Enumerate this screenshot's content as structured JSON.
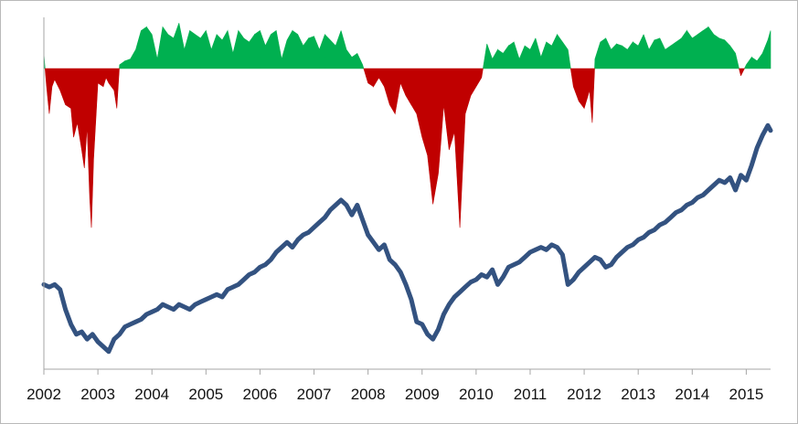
{
  "chart_data": [
    {
      "type": "area",
      "title": "",
      "xlabel": "",
      "ylabel": "",
      "baseline": 0,
      "ylim": [
        -1.0,
        0.27
      ],
      "xlim": [
        2002.0,
        2015.45
      ],
      "colors": {
        "positive": "#00b050",
        "negative": "#c00000"
      },
      "x": [
        2002.0,
        2002.05,
        2002.1,
        2002.15,
        2002.2,
        2002.3,
        2002.4,
        2002.5,
        2002.55,
        2002.62,
        2002.7,
        2002.75,
        2002.8,
        2002.85,
        2002.88,
        2002.92,
        2003.0,
        2003.1,
        2003.15,
        2003.2,
        2003.3,
        2003.35,
        2003.4,
        2003.5,
        2003.6,
        2003.7,
        2003.8,
        2003.9,
        2004.0,
        2004.1,
        2004.2,
        2004.3,
        2004.4,
        2004.5,
        2004.6,
        2004.7,
        2004.8,
        2004.9,
        2005.0,
        2005.1,
        2005.2,
        2005.3,
        2005.4,
        2005.5,
        2005.6,
        2005.7,
        2005.8,
        2005.9,
        2006.0,
        2006.1,
        2006.2,
        2006.3,
        2006.4,
        2006.5,
        2006.6,
        2006.7,
        2006.8,
        2006.9,
        2007.0,
        2007.1,
        2007.2,
        2007.3,
        2007.4,
        2007.5,
        2007.6,
        2007.7,
        2007.8,
        2007.9,
        2008.0,
        2008.1,
        2008.2,
        2008.3,
        2008.4,
        2008.5,
        2008.6,
        2008.7,
        2008.8,
        2008.9,
        2009.0,
        2009.1,
        2009.2,
        2009.3,
        2009.35,
        2009.4,
        2009.5,
        2009.6,
        2009.7,
        2009.8,
        2009.9,
        2010.0,
        2010.1,
        2010.2,
        2010.3,
        2010.4,
        2010.5,
        2010.6,
        2010.7,
        2010.8,
        2010.9,
        2011.0,
        2011.1,
        2011.2,
        2011.3,
        2011.4,
        2011.5,
        2011.6,
        2011.7,
        2011.8,
        2011.9,
        2012.0,
        2012.1,
        2012.15,
        2012.2,
        2012.3,
        2012.4,
        2012.5,
        2012.6,
        2012.7,
        2012.8,
        2012.9,
        2013.0,
        2013.1,
        2013.2,
        2013.3,
        2013.4,
        2013.5,
        2013.6,
        2013.7,
        2013.8,
        2013.9,
        2014.0,
        2014.1,
        2014.2,
        2014.3,
        2014.4,
        2014.5,
        2014.6,
        2014.7,
        2014.8,
        2014.9,
        2015.0,
        2015.1,
        2015.2,
        2015.3,
        2015.4,
        2015.45
      ],
      "values": [
        0.08,
        -0.1,
        -0.25,
        -0.1,
        -0.06,
        -0.12,
        -0.2,
        -0.22,
        -0.38,
        -0.3,
        -0.45,
        -0.55,
        -0.32,
        -0.72,
        -0.88,
        -0.5,
        -0.08,
        -0.1,
        -0.05,
        -0.08,
        -0.12,
        -0.22,
        0.02,
        0.04,
        0.05,
        0.1,
        0.2,
        0.22,
        0.18,
        0.05,
        0.22,
        0.18,
        0.16,
        0.24,
        0.1,
        0.2,
        0.18,
        0.16,
        0.2,
        0.1,
        0.18,
        0.15,
        0.2,
        0.08,
        0.2,
        0.16,
        0.14,
        0.18,
        0.2,
        0.12,
        0.18,
        0.2,
        0.05,
        0.15,
        0.2,
        0.18,
        0.12,
        0.16,
        0.17,
        0.1,
        0.18,
        0.15,
        0.12,
        0.2,
        0.1,
        0.06,
        0.08,
        0.02,
        -0.08,
        -0.1,
        -0.05,
        -0.1,
        -0.2,
        -0.25,
        -0.08,
        -0.15,
        -0.2,
        -0.25,
        -0.38,
        -0.48,
        -0.75,
        -0.58,
        -0.4,
        -0.2,
        -0.45,
        -0.35,
        -0.88,
        -0.25,
        -0.15,
        -0.1,
        -0.05,
        0.13,
        0.05,
        0.1,
        0.08,
        0.12,
        0.14,
        0.05,
        0.12,
        0.1,
        0.16,
        0.06,
        0.14,
        0.12,
        0.18,
        0.14,
        0.1,
        -0.1,
        -0.18,
        -0.22,
        -0.12,
        -0.3,
        0.05,
        0.14,
        0.16,
        0.1,
        0.13,
        0.12,
        0.1,
        0.14,
        0.12,
        0.18,
        0.1,
        0.15,
        0.16,
        0.1,
        0.12,
        0.14,
        0.16,
        0.2,
        0.16,
        0.18,
        0.2,
        0.22,
        0.18,
        0.16,
        0.15,
        0.12,
        0.08,
        -0.04,
        0.02,
        0.06,
        0.04,
        0.08,
        0.15,
        0.2
      ]
    },
    {
      "type": "line",
      "title": "",
      "xlabel": "",
      "ylabel": "",
      "ylim": [
        0,
        1
      ],
      "xlim": [
        2002.0,
        2015.45
      ],
      "color": "#335280",
      "x": [
        2002.0,
        2002.1,
        2002.2,
        2002.3,
        2002.4,
        2002.5,
        2002.6,
        2002.7,
        2002.8,
        2002.9,
        2003.0,
        2003.1,
        2003.2,
        2003.3,
        2003.4,
        2003.5,
        2003.6,
        2003.7,
        2003.8,
        2003.9,
        2004.0,
        2004.1,
        2004.2,
        2004.3,
        2004.4,
        2004.5,
        2004.6,
        2004.7,
        2004.8,
        2004.9,
        2005.0,
        2005.1,
        2005.2,
        2005.3,
        2005.4,
        2005.5,
        2005.6,
        2005.7,
        2005.8,
        2005.9,
        2006.0,
        2006.1,
        2006.2,
        2006.3,
        2006.4,
        2006.5,
        2006.6,
        2006.7,
        2006.8,
        2006.9,
        2007.0,
        2007.1,
        2007.2,
        2007.3,
        2007.4,
        2007.5,
        2007.6,
        2007.7,
        2007.8,
        2007.9,
        2008.0,
        2008.1,
        2008.2,
        2008.3,
        2008.4,
        2008.5,
        2008.6,
        2008.7,
        2008.8,
        2008.9,
        2009.0,
        2009.1,
        2009.2,
        2009.3,
        2009.4,
        2009.5,
        2009.6,
        2009.7,
        2009.8,
        2009.9,
        2010.0,
        2010.1,
        2010.2,
        2010.3,
        2010.4,
        2010.5,
        2010.6,
        2010.7,
        2010.8,
        2010.9,
        2011.0,
        2011.1,
        2011.2,
        2011.3,
        2011.4,
        2011.5,
        2011.6,
        2011.7,
        2011.8,
        2011.9,
        2012.0,
        2012.1,
        2012.2,
        2012.3,
        2012.4,
        2012.5,
        2012.6,
        2012.7,
        2012.8,
        2012.9,
        2013.0,
        2013.1,
        2013.2,
        2013.3,
        2013.4,
        2013.5,
        2013.6,
        2013.7,
        2013.8,
        2013.9,
        2014.0,
        2014.1,
        2014.2,
        2014.3,
        2014.4,
        2014.5,
        2014.6,
        2014.7,
        2014.8,
        2014.9,
        2015.0,
        2015.1,
        2015.2,
        2015.3,
        2015.4,
        2015.45
      ],
      "values": [
        0.3,
        0.29,
        0.3,
        0.28,
        0.2,
        0.14,
        0.1,
        0.11,
        0.08,
        0.1,
        0.07,
        0.05,
        0.03,
        0.08,
        0.1,
        0.13,
        0.14,
        0.15,
        0.16,
        0.18,
        0.19,
        0.2,
        0.22,
        0.21,
        0.2,
        0.22,
        0.21,
        0.2,
        0.22,
        0.23,
        0.24,
        0.25,
        0.26,
        0.25,
        0.28,
        0.29,
        0.3,
        0.32,
        0.34,
        0.35,
        0.37,
        0.38,
        0.4,
        0.43,
        0.45,
        0.47,
        0.45,
        0.48,
        0.5,
        0.51,
        0.53,
        0.55,
        0.57,
        0.6,
        0.62,
        0.64,
        0.62,
        0.58,
        0.62,
        0.56,
        0.5,
        0.47,
        0.44,
        0.46,
        0.4,
        0.38,
        0.35,
        0.3,
        0.24,
        0.15,
        0.14,
        0.1,
        0.08,
        0.12,
        0.18,
        0.22,
        0.25,
        0.27,
        0.29,
        0.31,
        0.32,
        0.34,
        0.33,
        0.36,
        0.3,
        0.33,
        0.37,
        0.38,
        0.39,
        0.41,
        0.43,
        0.44,
        0.45,
        0.44,
        0.46,
        0.45,
        0.42,
        0.3,
        0.32,
        0.35,
        0.37,
        0.39,
        0.41,
        0.4,
        0.37,
        0.38,
        0.41,
        0.43,
        0.45,
        0.46,
        0.48,
        0.49,
        0.51,
        0.52,
        0.54,
        0.55,
        0.57,
        0.59,
        0.6,
        0.62,
        0.63,
        0.65,
        0.66,
        0.68,
        0.7,
        0.72,
        0.71,
        0.73,
        0.68,
        0.74,
        0.72,
        0.78,
        0.85,
        0.9,
        0.94,
        0.92
      ]
    }
  ],
  "x_axis": {
    "ticks": [
      2002,
      2003,
      2004,
      2005,
      2006,
      2007,
      2008,
      2009,
      2010,
      2011,
      2012,
      2013,
      2014,
      2015
    ],
    "tick_labels": [
      "2002",
      "2003",
      "2004",
      "2005",
      "2006",
      "2007",
      "2008",
      "2009",
      "2010",
      "2011",
      "2012",
      "2013",
      "2014",
      "2015"
    ]
  },
  "axis_color": "#a6a6a6"
}
